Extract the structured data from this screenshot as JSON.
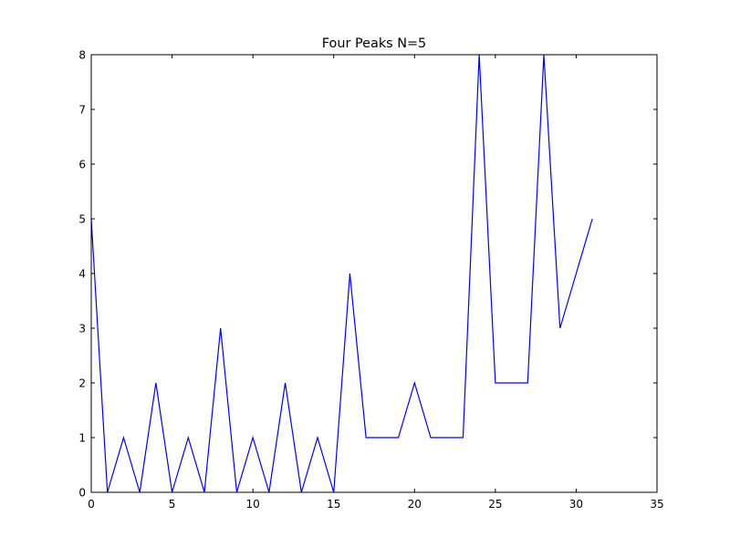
{
  "chart_data": {
    "type": "line",
    "title": "Four Peaks N=5",
    "xlabel": "",
    "ylabel": "",
    "xlim": [
      0,
      35
    ],
    "ylim": [
      0,
      8
    ],
    "x_ticks": [
      0,
      5,
      10,
      15,
      20,
      25,
      30,
      35
    ],
    "y_ticks": [
      0,
      1,
      2,
      3,
      4,
      5,
      6,
      7,
      8
    ],
    "x_tick_labels": [
      "0",
      "5",
      "10",
      "15",
      "20",
      "25",
      "30",
      "35"
    ],
    "y_tick_labels": [
      "0",
      "1",
      "2",
      "3",
      "4",
      "5",
      "6",
      "7",
      "8"
    ],
    "grid": false,
    "series": [
      {
        "color": "#0000ff",
        "x": [
          0,
          1,
          2,
          3,
          4,
          5,
          6,
          7,
          8,
          9,
          10,
          11,
          12,
          13,
          14,
          15,
          16,
          17,
          18,
          19,
          20,
          21,
          22,
          23,
          24,
          25,
          26,
          27,
          28,
          29,
          30,
          31
        ],
        "y": [
          5,
          0,
          1,
          0,
          2,
          0,
          1,
          0,
          3,
          0,
          1,
          0,
          2,
          0,
          1,
          0,
          4,
          1,
          1,
          1,
          2,
          1,
          1,
          1,
          8,
          2,
          2,
          2,
          8,
          3,
          4,
          5
        ]
      }
    ]
  }
}
